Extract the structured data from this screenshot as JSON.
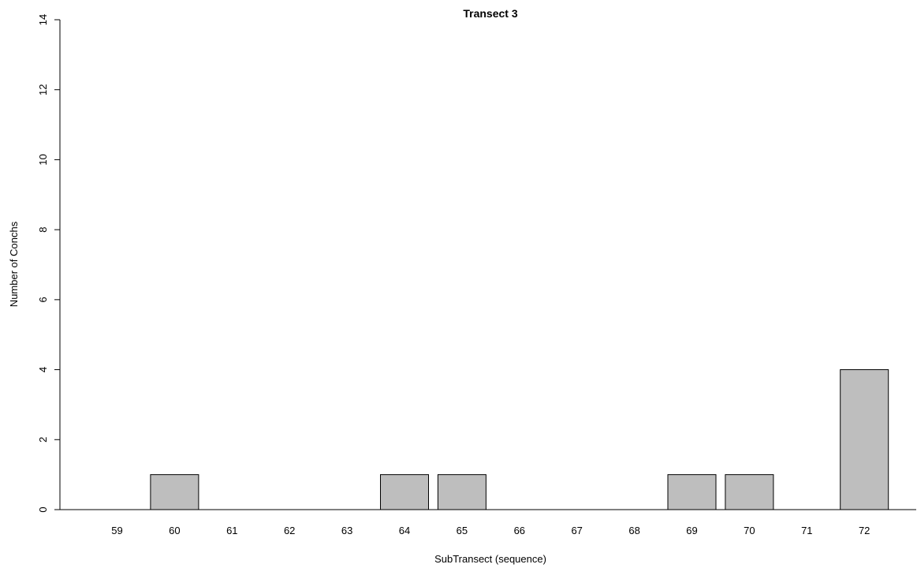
{
  "chart_data": {
    "type": "bar",
    "title": "Transect 3",
    "xlabel": "SubTransect (sequence)",
    "ylabel": "Number of Conchs",
    "categories": [
      "59",
      "60",
      "61",
      "62",
      "63",
      "64",
      "65",
      "66",
      "67",
      "68",
      "69",
      "70",
      "71",
      "72"
    ],
    "values": [
      0,
      1,
      0,
      0,
      0,
      1,
      1,
      0,
      0,
      0,
      1,
      1,
      0,
      4
    ],
    "ylim": [
      0,
      14
    ],
    "yticks": [
      "0",
      "2",
      "4",
      "6",
      "8",
      "10",
      "12",
      "14"
    ],
    "grid": false,
    "legend": "none",
    "bar_color": "#bebebe",
    "bar_edge_color": "#000000"
  }
}
